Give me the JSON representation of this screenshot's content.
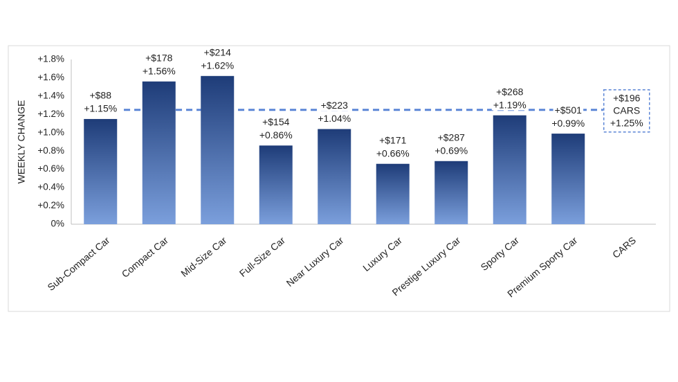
{
  "chart_data": {
    "type": "bar",
    "ylabel": "WEEKLY CHANGE",
    "categories": [
      "Sub-Compact Car",
      "Compact Car",
      "Mid-Size Car",
      "Full-Size Car",
      "Near Luxury Car",
      "Luxury Car",
      "Prestige Luxury Car",
      "Sporty Car",
      "Premium Sporty Car",
      "CARS"
    ],
    "values": [
      1.15,
      1.56,
      1.62,
      0.86,
      1.04,
      0.66,
      0.69,
      1.19,
      0.99,
      null
    ],
    "value_labels": [
      "+1.15%",
      "+1.56%",
      "+1.62%",
      "+0.86%",
      "+1.04%",
      "+0.66%",
      "+0.69%",
      "+1.19%",
      "+0.99%",
      null
    ],
    "dollar_labels": [
      "+$88",
      "+$178",
      "+$214",
      "+$154",
      "+$223",
      "+$171",
      "+$287",
      "+$268",
      "+$501",
      null
    ],
    "color": [
      "#1e3c78",
      "#7b9fdc"
    ],
    "reference": {
      "value": 1.25,
      "dollar_label": "+$196",
      "name": "CARS",
      "value_label": "+1.25%",
      "color": "#5b85d6"
    },
    "ylim": [
      0,
      1.8
    ],
    "yticks": [
      {
        "value": 0,
        "label": "0%"
      },
      {
        "value": 0.2,
        "label": "+0.2%"
      },
      {
        "value": 0.4,
        "label": "+0.4%"
      },
      {
        "value": 0.6,
        "label": "+0.6%"
      },
      {
        "value": 0.8,
        "label": "+0.8%"
      },
      {
        "value": 1.0,
        "label": "+1.0%"
      },
      {
        "value": 1.2,
        "label": "+1.2%"
      },
      {
        "value": 1.4,
        "label": "+1.4%"
      },
      {
        "value": 1.6,
        "label": "+1.6%"
      },
      {
        "value": 1.8,
        "label": "+1.8%"
      }
    ],
    "grid": false
  }
}
